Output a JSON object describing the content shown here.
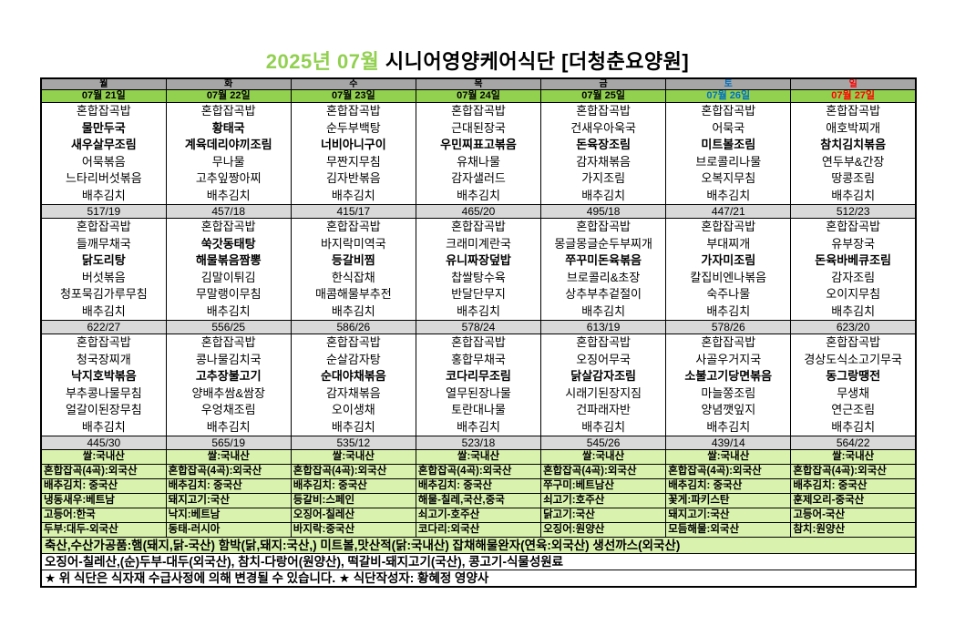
{
  "title": {
    "month": "2025년 07월",
    "rest": " 시니어영양케어식단 [더청춘요양원]"
  },
  "colors": {
    "accent_green": "#92d050",
    "pale_green": "#d9f3ae",
    "header_gray": "#a6a6a6",
    "kcal_gray": "#d9d9d9",
    "sat_blue": "#0070c0",
    "sun_red": "#ff0000"
  },
  "columns": [
    {
      "day": "월",
      "date": "07월 21일",
      "color": "#000000",
      "meals": [
        {
          "items": [
            {
              "t": "혼합잡곡밥",
              "b": false
            },
            {
              "t": "물만두국",
              "b": true
            },
            {
              "t": "새우살무조림",
              "b": true
            },
            {
              "t": "어묵볶음",
              "b": false
            },
            {
              "t": "느타리버섯볶음",
              "b": false
            },
            {
              "t": "배추김치",
              "b": false
            }
          ],
          "kcal": "517/19"
        },
        {
          "items": [
            {
              "t": "혼합잡곡밥",
              "b": false
            },
            {
              "t": "들깨무채국",
              "b": false
            },
            {
              "t": "닭도리탕",
              "b": true
            },
            {
              "t": "버섯볶음",
              "b": false
            },
            {
              "t": "청포묵김가루무침",
              "b": false
            },
            {
              "t": "배추김치",
              "b": false
            }
          ],
          "kcal": "622/27"
        },
        {
          "items": [
            {
              "t": "혼합잡곡밥",
              "b": false
            },
            {
              "t": "청국장찌개",
              "b": false
            },
            {
              "t": "낙지호박볶음",
              "b": true
            },
            {
              "t": "부추콩나물무침",
              "b": false
            },
            {
              "t": "얼갈이된장무침",
              "b": false
            },
            {
              "t": "배추김치",
              "b": false
            }
          ],
          "kcal": "445/30"
        }
      ],
      "origins": [
        "쌀:국내산",
        "혼합잡곡(4곡):외국산",
        "배추김치: 중국산",
        "냉동새우:베트남",
        "고등어:한국",
        "두부:대두-외국산"
      ]
    },
    {
      "day": "화",
      "date": "07월 22일",
      "color": "#000000",
      "meals": [
        {
          "items": [
            {
              "t": "혼합잡곡밥",
              "b": false
            },
            {
              "t": "황태국",
              "b": true
            },
            {
              "t": "계육데리야끼조림",
              "b": true
            },
            {
              "t": "무나물",
              "b": false
            },
            {
              "t": "고추잎짱아찌",
              "b": false
            },
            {
              "t": "배추김치",
              "b": false
            }
          ],
          "kcal": "457/18"
        },
        {
          "items": [
            {
              "t": "혼합잡곡밥",
              "b": false
            },
            {
              "t": "쑥갓동태탕",
              "b": true
            },
            {
              "t": "해물볶음짬뽕",
              "b": true
            },
            {
              "t": "김말이튀김",
              "b": false
            },
            {
              "t": "무말랭이무침",
              "b": false
            },
            {
              "t": "배추김치",
              "b": false
            }
          ],
          "kcal": "556/25"
        },
        {
          "items": [
            {
              "t": "혼합잡곡밥",
              "b": false
            },
            {
              "t": "콩나물김치국",
              "b": false
            },
            {
              "t": "고추장불고기",
              "b": true
            },
            {
              "t": "양배추쌈&쌈장",
              "b": false
            },
            {
              "t": "우엉채조림",
              "b": false
            },
            {
              "t": "배추김치",
              "b": false
            }
          ],
          "kcal": "565/19"
        }
      ],
      "origins": [
        "쌀:국내산",
        "혼합잡곡(4곡):외국산",
        "배추김치: 중국산",
        "돼지고기:국산",
        "낙지:베트남",
        "동태-러시아"
      ]
    },
    {
      "day": "수",
      "date": "07월 23일",
      "color": "#000000",
      "meals": [
        {
          "items": [
            {
              "t": "혼합잡곡밥",
              "b": false
            },
            {
              "t": "순두부백탕",
              "b": false
            },
            {
              "t": "너비아니구이",
              "b": true
            },
            {
              "t": "무짠지무침",
              "b": false
            },
            {
              "t": "김자반볶음",
              "b": false
            },
            {
              "t": "배추김치",
              "b": false
            }
          ],
          "kcal": "415/17"
        },
        {
          "items": [
            {
              "t": "혼합잡곡밥",
              "b": false
            },
            {
              "t": "바지락미역국",
              "b": false
            },
            {
              "t": "등갈비찜",
              "b": true
            },
            {
              "t": "한식잡채",
              "b": false
            },
            {
              "t": "매콤해물부추전",
              "b": false
            },
            {
              "t": "배추김치",
              "b": false
            }
          ],
          "kcal": "586/26"
        },
        {
          "items": [
            {
              "t": "혼합잡곡밥",
              "b": false
            },
            {
              "t": "순살감자탕",
              "b": false
            },
            {
              "t": "순대야채볶음",
              "b": true
            },
            {
              "t": "감자채볶음",
              "b": false
            },
            {
              "t": "오이생채",
              "b": false
            },
            {
              "t": "배추김치",
              "b": false
            }
          ],
          "kcal": "535/12"
        }
      ],
      "origins": [
        "쌀:국내산",
        "혼합잡곡(4곡):외국산",
        "배추김치: 중국산",
        "등갈비:스페인",
        "오징어-칠레산",
        "바지락:중국산"
      ]
    },
    {
      "day": "목",
      "date": "07월 24일",
      "color": "#000000",
      "meals": [
        {
          "items": [
            {
              "t": "혼합잡곡밥",
              "b": false
            },
            {
              "t": "근대된장국",
              "b": false
            },
            {
              "t": "우민찌표고볶음",
              "b": true
            },
            {
              "t": "유채나물",
              "b": false
            },
            {
              "t": "감자샐러드",
              "b": false
            },
            {
              "t": "배추김치",
              "b": false
            }
          ],
          "kcal": "465/20"
        },
        {
          "items": [
            {
              "t": "혼합잡곡밥",
              "b": false
            },
            {
              "t": "크래미계란국",
              "b": false
            },
            {
              "t": "유니짜장덮밥",
              "b": true
            },
            {
              "t": "찹쌀탕수육",
              "b": false
            },
            {
              "t": "반달단무지",
              "b": false
            },
            {
              "t": "배추김치",
              "b": false
            }
          ],
          "kcal": "578/24"
        },
        {
          "items": [
            {
              "t": "혼합잡곡밥",
              "b": false
            },
            {
              "t": "홍합무채국",
              "b": false
            },
            {
              "t": "코다리무조림",
              "b": true
            },
            {
              "t": "열무된장나물",
              "b": false
            },
            {
              "t": "토란대나물",
              "b": false
            },
            {
              "t": "배추김치",
              "b": false
            }
          ],
          "kcal": "523/18"
        }
      ],
      "origins": [
        "쌀:국내산",
        "혼합잡곡(4곡):외국산",
        "배추김치: 중국산",
        "해물-칠레,국산,중국",
        "쇠고기-호주산",
        "코다리:외국산"
      ]
    },
    {
      "day": "금",
      "date": "07월 25일",
      "color": "#000000",
      "meals": [
        {
          "items": [
            {
              "t": "혼합잡곡밥",
              "b": false
            },
            {
              "t": "건새우아욱국",
              "b": false
            },
            {
              "t": "돈육장조림",
              "b": true
            },
            {
              "t": "감자채볶음",
              "b": false
            },
            {
              "t": "가지조림",
              "b": false
            },
            {
              "t": "배추김치",
              "b": false
            }
          ],
          "kcal": "495/18"
        },
        {
          "items": [
            {
              "t": "혼합잡곡밥",
              "b": false
            },
            {
              "t": "몽글몽글순두부찌개",
              "b": false
            },
            {
              "t": "쭈꾸미돈육볶음",
              "b": true
            },
            {
              "t": "브로콜리&초장",
              "b": false
            },
            {
              "t": "상추부추겉절이",
              "b": false
            },
            {
              "t": "배추김치",
              "b": false
            }
          ],
          "kcal": "613/19"
        },
        {
          "items": [
            {
              "t": "혼합잡곡밥",
              "b": false
            },
            {
              "t": "오징어무국",
              "b": false
            },
            {
              "t": "닭살감자조림",
              "b": true
            },
            {
              "t": "시래기된장지짐",
              "b": false
            },
            {
              "t": "건파래자반",
              "b": false
            },
            {
              "t": "배추김치",
              "b": false
            }
          ],
          "kcal": "545/26"
        }
      ],
      "origins": [
        "쌀:국내산",
        "혼합잡곡(4곡):외국산",
        "쭈구미:베트남산",
        "쇠고기:호주산",
        "닭고기:국산",
        "오징어:원양산"
      ]
    },
    {
      "day": "토",
      "date": "07월 26일",
      "color": "#0070c0",
      "meals": [
        {
          "items": [
            {
              "t": "혼합잡곡밥",
              "b": false
            },
            {
              "t": "어묵국",
              "b": false
            },
            {
              "t": "미트볼조림",
              "b": true
            },
            {
              "t": "브로콜리나물",
              "b": false
            },
            {
              "t": "오복지무침",
              "b": false
            },
            {
              "t": "배추김치",
              "b": false
            }
          ],
          "kcal": "447/21"
        },
        {
          "items": [
            {
              "t": "혼합잡곡밥",
              "b": false
            },
            {
              "t": "부대찌개",
              "b": false
            },
            {
              "t": "가자미조림",
              "b": true
            },
            {
              "t": "칼집비엔나볶음",
              "b": false
            },
            {
              "t": "숙주나물",
              "b": false
            },
            {
              "t": "배추김치",
              "b": false
            }
          ],
          "kcal": "578/26"
        },
        {
          "items": [
            {
              "t": "혼합잡곡밥",
              "b": false
            },
            {
              "t": "사골우거지국",
              "b": false
            },
            {
              "t": "소불고기당면볶음",
              "b": true
            },
            {
              "t": "마늘쫑조림",
              "b": false
            },
            {
              "t": "양념깻잎지",
              "b": false
            },
            {
              "t": "배추김치",
              "b": false
            }
          ],
          "kcal": "439/14"
        }
      ],
      "origins": [
        "쌀:국내산",
        "혼합잡곡(4곡):외국산",
        "배추김치: 중국산",
        "꽃게:파키스탄",
        "돼지고기:국산",
        "모듬해물:외국산"
      ]
    },
    {
      "day": "일",
      "date": "07월 27일",
      "color": "#ff0000",
      "meals": [
        {
          "items": [
            {
              "t": "혼합잡곡밥",
              "b": false
            },
            {
              "t": "애호박찌개",
              "b": false
            },
            {
              "t": "참치김치볶음",
              "b": true
            },
            {
              "t": "연두부&간장",
              "b": false
            },
            {
              "t": "땅콩조림",
              "b": false
            },
            {
              "t": "배추김치",
              "b": false
            }
          ],
          "kcal": "512/23"
        },
        {
          "items": [
            {
              "t": "혼합잡곡밥",
              "b": false
            },
            {
              "t": "유부장국",
              "b": false
            },
            {
              "t": "돈육바베큐조림",
              "b": true
            },
            {
              "t": "감자조림",
              "b": false
            },
            {
              "t": "오이지무침",
              "b": false
            },
            {
              "t": "배추김치",
              "b": false
            }
          ],
          "kcal": "623/20"
        },
        {
          "items": [
            {
              "t": "혼합잡곡밥",
              "b": false
            },
            {
              "t": "경상도식소고기무국",
              "b": false
            },
            {
              "t": "동그랑땡전",
              "b": true
            },
            {
              "t": "무생채",
              "b": false
            },
            {
              "t": "연근조림",
              "b": false
            },
            {
              "t": "배추김치",
              "b": false
            }
          ],
          "kcal": "564/22"
        }
      ],
      "origins": [
        "쌀:국내산",
        "혼합잡곡(4곡):외국산",
        "배추김치: 중국산",
        "훈제오리-중국산",
        "고등어-국산",
        "참치:원양산"
      ]
    }
  ],
  "footer": [
    "축산,수산가공품:햄(돼지,닭-국산) 함박(닭,돼지:국산,) 미트볼,맛산적(닭:국내산) 잡채해물완자(연육:외국산) 생선까스(외국산)",
    "오징어-칠레산,(순)두부-대두(외국산), 참치-다랑어(원양산), 떡갈비-돼지고기(국산), 콩고기-식물성원료",
    "★ 위 식단은 식자재 수급사정에 의해 변경될 수 있습니다. ★ 식단작성자: 황혜정 영양사"
  ]
}
